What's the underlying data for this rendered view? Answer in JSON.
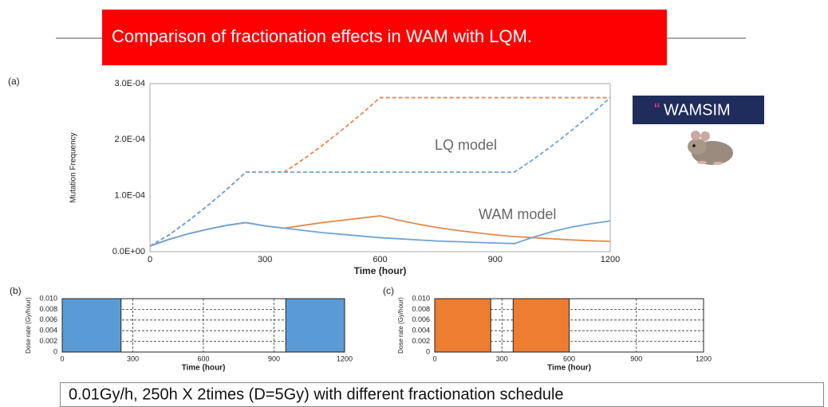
{
  "header": {
    "title": "Comparison of fractionation effects in WAM with LQM."
  },
  "badge": {
    "quote": "“",
    "label": "WAMSIM"
  },
  "caption": "0.01Gy/h, 250h X 2times (D=5Gy) with different fractionation schedule",
  "chart_data": [
    {
      "type": "line",
      "panel_label": "(a)",
      "x_label": "Time (hour)",
      "y_label": "Mutation Frequency",
      "xlim": [
        0,
        1200
      ],
      "xticks": [
        0,
        300,
        600,
        900,
        1200
      ],
      "ylim": [
        0,
        0.0003
      ],
      "yticks": [
        {
          "value": 0,
          "label": "0.0E+00"
        },
        {
          "value": 0.0001,
          "label": "1.0E-04"
        },
        {
          "value": 0.0002,
          "label": "2.0E-04"
        },
        {
          "value": 0.0003,
          "label": "3.0E-04"
        }
      ],
      "grid": false,
      "annotations": [
        "LQ model",
        "WAM model"
      ],
      "x": [
        0,
        50,
        100,
        150,
        200,
        250,
        300,
        350,
        400,
        450,
        500,
        550,
        600,
        650,
        700,
        750,
        800,
        850,
        900,
        950,
        1000,
        1050,
        1100,
        1150,
        1200
      ],
      "series": [
        {
          "color": "#e3894f",
          "dashed": true,
          "values": [
            1e-05,
            3e-05,
            5.5e-05,
            8.2e-05,
            0.000111,
            0.000142,
            0.000142,
            0.000142,
            0.000165,
            0.00019,
            0.000217,
            0.000245,
            0.000275,
            0.000275,
            0.000275,
            0.000275,
            0.000275,
            0.000275,
            0.000275,
            0.000275,
            0.000275,
            0.000275,
            0.000275,
            0.000275,
            0.000275
          ]
        },
        {
          "color": "#6fa3d6",
          "dashed": true,
          "values": [
            1e-05,
            3e-05,
            5.5e-05,
            8.2e-05,
            0.000111,
            0.000142,
            0.000142,
            0.000142,
            0.000142,
            0.000142,
            0.000142,
            0.000142,
            0.000142,
            0.000142,
            0.000142,
            0.000142,
            0.000142,
            0.000142,
            0.000142,
            0.000142,
            0.000165,
            0.00019,
            0.000217,
            0.000245,
            0.000275
          ]
        },
        {
          "color": "#e3894f",
          "dashed": false,
          "values": [
            1e-05,
            2.2e-05,
            3.2e-05,
            4e-05,
            4.7e-05,
            5.2e-05,
            4.6e-05,
            4.2e-05,
            4.7e-05,
            5.2e-05,
            5.6e-05,
            6e-05,
            6.4e-05,
            5.6e-05,
            4.9e-05,
            4.3e-05,
            3.8e-05,
            3.4e-05,
            3e-05,
            2.7e-05,
            2.5e-05,
            2.3e-05,
            2.1e-05,
            1.95e-05,
            1.85e-05
          ]
        },
        {
          "color": "#6fa3d6",
          "dashed": false,
          "values": [
            1e-05,
            2.2e-05,
            3.2e-05,
            4e-05,
            4.7e-05,
            5.2e-05,
            4.6e-05,
            4.2e-05,
            3.8e-05,
            3.4e-05,
            3.1e-05,
            2.8e-05,
            2.5e-05,
            2.3e-05,
            2.1e-05,
            1.9e-05,
            1.8e-05,
            1.65e-05,
            1.55e-05,
            1.45e-05,
            2.6e-05,
            3.6e-05,
            4.4e-05,
            5e-05,
            5.5e-05
          ]
        }
      ]
    },
    {
      "type": "bar",
      "panel_label": "(b)",
      "x_label": "Time (hour)",
      "y_label": "Dose rate (Gy/hour)",
      "xlim": [
        0,
        1200
      ],
      "xticks": [
        0,
        300,
        600,
        900,
        1200
      ],
      "ylim": [
        0,
        0.01
      ],
      "yticks": [
        0,
        0.002,
        0.004,
        0.006,
        0.008,
        {
          "value": 0.01,
          "label": "0.010"
        }
      ],
      "grid": true,
      "color": "#5b9bd5",
      "x_start": [
        0,
        950
      ],
      "x_end": [
        250,
        1200
      ],
      "values": [
        0.01,
        0.01
      ]
    },
    {
      "type": "bar",
      "panel_label": "(c)",
      "x_label": "Time (hour)",
      "y_label": "Dose rate (Gy/hour)",
      "xlim": [
        0,
        1200
      ],
      "xticks": [
        0,
        300,
        600,
        900,
        1200
      ],
      "ylim": [
        0,
        0.01
      ],
      "yticks": [
        0,
        0.002,
        0.004,
        0.006,
        0.008,
        {
          "value": 0.01,
          "label": "0.010"
        }
      ],
      "grid": true,
      "color": "#ed7d31",
      "x_start": [
        0,
        350
      ],
      "x_end": [
        250,
        600
      ],
      "values": [
        0.01,
        0.01
      ]
    }
  ]
}
